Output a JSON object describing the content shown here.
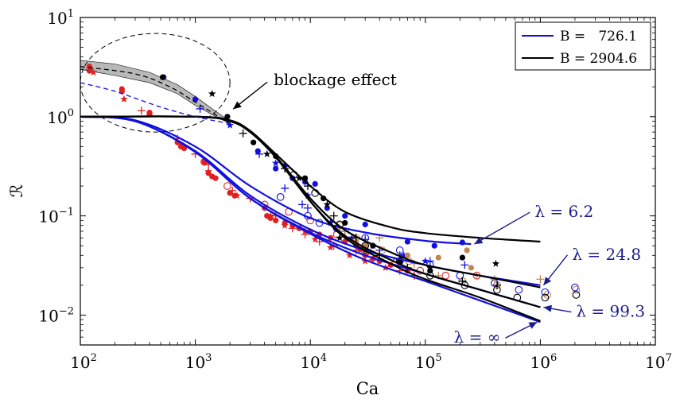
{
  "chart_data": {
    "type": "line",
    "xscale": "log",
    "yscale": "log",
    "xlim": [
      100,
      10000000
    ],
    "ylim": [
      0.005,
      10
    ],
    "xlabel": "Ca",
    "ylabel": "ℛ",
    "x_ticks": [
      {
        "base": "10",
        "exp": "2",
        "value": 100
      },
      {
        "base": "10",
        "exp": "3",
        "value": 1000
      },
      {
        "base": "10",
        "exp": "4",
        "value": 10000
      },
      {
        "base": "10",
        "exp": "5",
        "value": 100000
      },
      {
        "base": "10",
        "exp": "6",
        "value": 1000000
      },
      {
        "base": "10",
        "exp": "7",
        "value": 10000000
      }
    ],
    "y_ticks": [
      {
        "base": "10",
        "exp": "1",
        "value": 10
      },
      {
        "base": "10",
        "exp": "0",
        "value": 1
      },
      {
        "base": "10",
        "exp": "−1",
        "value": 0.1
      },
      {
        "base": "10",
        "exp": "−2",
        "value": 0.01
      }
    ],
    "legend": {
      "placement": "top-right",
      "entries": [
        {
          "label": "B =   726.1",
          "color": "#1010e0"
        },
        {
          "label": "B = 2904.6",
          "color": "#000000"
        }
      ]
    },
    "series": [
      {
        "group": "B = 726.1",
        "lambda": "6.2",
        "color": "#1010e0",
        "x": [
          100,
          300,
          1000,
          3000,
          10000,
          30000,
          100000,
          250000
        ],
        "y": [
          1.0,
          0.92,
          0.5,
          0.2,
          0.095,
          0.068,
          0.056,
          0.052
        ]
      },
      {
        "group": "B = 726.1",
        "lambda": "24.8",
        "color": "#1010e0",
        "x": [
          100,
          300,
          1000,
          3000,
          10000,
          30000,
          100000,
          300000,
          1000000
        ],
        "y": [
          1.0,
          0.9,
          0.45,
          0.16,
          0.073,
          0.045,
          0.032,
          0.025,
          0.02
        ]
      },
      {
        "group": "B = 726.1",
        "lambda": "99.3",
        "color": "#1010e0",
        "x": [
          100,
          300,
          1000,
          3000,
          10000,
          30000,
          100000,
          300000,
          1000000
        ],
        "y": [
          1.0,
          0.9,
          0.44,
          0.15,
          0.068,
          0.04,
          0.026,
          0.018,
          0.012
        ]
      },
      {
        "group": "B = 726.1",
        "lambda": "∞",
        "color": "#1010e0",
        "x": [
          100,
          300,
          1000,
          3000,
          10000,
          30000,
          100000,
          300000,
          1000000
        ],
        "y": [
          1.0,
          0.9,
          0.44,
          0.15,
          0.066,
          0.036,
          0.022,
          0.014,
          0.0085
        ]
      },
      {
        "group": "B = 2904.6",
        "lambda": "6.2",
        "color": "#000000",
        "x": [
          100,
          1000,
          2000,
          3000,
          5000,
          10000,
          20000,
          50000,
          100000,
          300000,
          1000000
        ],
        "y": [
          1.0,
          1.0,
          0.92,
          0.72,
          0.42,
          0.2,
          0.11,
          0.077,
          0.067,
          0.06,
          0.055
        ]
      },
      {
        "group": "B = 2904.6",
        "lambda": "24.8",
        "color": "#000000",
        "x": [
          100,
          1000,
          2000,
          3000,
          5000,
          10000,
          20000,
          50000,
          100000,
          300000,
          1000000
        ],
        "y": [
          1.0,
          1.0,
          0.9,
          0.7,
          0.4,
          0.15,
          0.072,
          0.043,
          0.032,
          0.025,
          0.019
        ]
      },
      {
        "group": "B = 2904.6",
        "lambda": "99.3",
        "color": "#000000",
        "x": [
          100,
          1000,
          2000,
          3000,
          5000,
          10000,
          20000,
          50000,
          100000,
          300000,
          1000000
        ],
        "y": [
          1.0,
          1.0,
          0.9,
          0.7,
          0.39,
          0.14,
          0.063,
          0.036,
          0.026,
          0.018,
          0.012
        ]
      },
      {
        "group": "B = 2904.6",
        "lambda": "∞",
        "color": "#000000",
        "x": [
          100,
          1000,
          2000,
          3000,
          5000,
          10000,
          20000,
          50000,
          100000,
          300000,
          1000000
        ],
        "y": [
          1.0,
          1.0,
          0.9,
          0.7,
          0.39,
          0.14,
          0.06,
          0.033,
          0.023,
          0.015,
          0.0087
        ]
      },
      {
        "group": "blockage",
        "style": "dashed",
        "color": "#000000",
        "x": [
          100,
          300,
          600,
          1000,
          2000
        ],
        "y": [
          3.2,
          2.7,
          2.0,
          1.4,
          0.85
        ]
      },
      {
        "group": "blockage",
        "style": "dashed",
        "color": "#1010e0",
        "x": [
          100,
          200,
          500,
          1000,
          2000
        ],
        "y": [
          2.2,
          1.8,
          1.25,
          1.0,
          0.85
        ]
      }
    ],
    "blockage_band": {
      "x": [
        100,
        200,
        400,
        700,
        1000,
        1400,
        2000
      ],
      "y_upper": [
        3.7,
        3.4,
        2.8,
        2.1,
        1.6,
        1.2,
        0.9
      ],
      "y_lower": [
        3.0,
        2.6,
        2.2,
        1.7,
        1.3,
        1.05,
        0.85
      ]
    },
    "lambda_labels": [
      {
        "text": "λ = 6.2",
        "x": 250000,
        "y": 0.052
      },
      {
        "text": "λ = 24.8",
        "x": 1000000,
        "y": 0.02
      },
      {
        "text": "λ = 99.3",
        "x": 1000000,
        "y": 0.012
      },
      {
        "text": "λ = ∞",
        "x": 1000000,
        "y": 0.0085
      }
    ],
    "annotations": [
      {
        "text": "blockage effect",
        "ellipse_center": [
          316,
          2.0
        ],
        "ellipse_span_x": [
          100,
          2000
        ],
        "ellipse_span_y": [
          0.7,
          6.9
        ]
      }
    ],
    "scatter_groups": [
      {
        "marker": "dot",
        "color": "#e02020",
        "points": [
          [
            120,
            3.2
          ],
          [
            120,
            2.9
          ],
          [
            230,
            1.9
          ],
          [
            230,
            1.8
          ],
          [
            400,
            1.1
          ],
          [
            400,
            1.05
          ],
          [
            700,
            0.55
          ],
          [
            750,
            0.5
          ],
          [
            800,
            0.48
          ],
          [
            1200,
            0.35
          ],
          [
            1300,
            0.27
          ],
          [
            1400,
            0.25
          ],
          [
            1500,
            0.24
          ],
          [
            2000,
            0.17
          ],
          [
            2200,
            0.16
          ],
          [
            4000,
            0.12
          ],
          [
            4200,
            0.1
          ],
          [
            4500,
            0.095
          ],
          [
            5000,
            0.09
          ],
          [
            6000,
            0.085
          ],
          [
            7000,
            0.08
          ],
          [
            8000,
            0.075
          ],
          [
            10000,
            0.07
          ],
          [
            12000,
            0.065
          ],
          [
            15000,
            0.06
          ],
          [
            20000,
            0.055
          ],
          [
            25000,
            0.05
          ],
          [
            27000,
            0.046
          ],
          [
            30000,
            0.04
          ],
          [
            35000,
            0.037
          ],
          [
            40000,
            0.035
          ],
          [
            50000,
            0.032
          ],
          [
            70000,
            0.028
          ]
        ]
      },
      {
        "marker": "plus",
        "color": "#e02020",
        "points": [
          [
            120,
            3.0
          ],
          [
            340,
            1.15
          ],
          [
            700,
            0.6
          ],
          [
            1000,
            0.42
          ],
          [
            1300,
            0.33
          ],
          [
            2100,
            0.18
          ],
          [
            3000,
            0.15
          ],
          [
            5000,
            0.1
          ],
          [
            7000,
            0.075
          ],
          [
            9000,
            0.065
          ],
          [
            12000,
            0.055
          ],
          [
            16000,
            0.05
          ],
          [
            25000,
            0.045
          ],
          [
            35000,
            0.036
          ],
          [
            60000,
            0.028
          ],
          [
            80000,
            0.025
          ]
        ]
      },
      {
        "marker": "star",
        "color": "#e02020",
        "points": [
          [
            130,
            2.8
          ],
          [
            240,
            1.5
          ],
          [
            800,
            0.5
          ],
          [
            1300,
            0.28
          ],
          [
            2300,
            0.16
          ],
          [
            4500,
            0.1
          ],
          [
            6000,
            0.08
          ],
          [
            9000,
            0.07
          ],
          [
            11000,
            0.058
          ],
          [
            15000,
            0.048
          ],
          [
            22000,
            0.04
          ],
          [
            30000,
            0.035
          ],
          [
            45000,
            0.03
          ]
        ]
      },
      {
        "marker": "ring",
        "color": "#e02020",
        "points": [
          [
            1200,
            0.35
          ],
          [
            1900,
            0.2
          ],
          [
            4000,
            0.13
          ],
          [
            6500,
            0.11
          ],
          [
            10000,
            0.09
          ],
          [
            17000,
            0.065
          ],
          [
            30000,
            0.042
          ],
          [
            55000,
            0.034
          ],
          [
            90000,
            0.028
          ],
          [
            150000,
            0.025
          ],
          [
            280000,
            0.025
          ]
        ]
      },
      {
        "marker": "dot",
        "color": "#1010e0",
        "points": [
          [
            530,
            2.5
          ],
          [
            1000,
            1.5
          ],
          [
            3500,
            0.45
          ],
          [
            5000,
            0.3
          ],
          [
            6000,
            0.32
          ],
          [
            7000,
            0.24
          ],
          [
            9000,
            0.22
          ],
          [
            11000,
            0.21
          ],
          [
            14000,
            0.12
          ],
          [
            20000,
            0.1
          ],
          [
            30000,
            0.082
          ],
          [
            70000,
            0.055
          ],
          [
            120000,
            0.05
          ],
          [
            210000,
            0.054
          ]
        ]
      },
      {
        "marker": "plus",
        "color": "#1010e0",
        "points": [
          [
            1100,
            1.2
          ],
          [
            3600,
            0.42
          ],
          [
            6000,
            0.19
          ],
          [
            8500,
            0.13
          ],
          [
            9500,
            0.12
          ],
          [
            15000,
            0.088
          ],
          [
            20000,
            0.07
          ],
          [
            30000,
            0.058
          ],
          [
            40000,
            0.045
          ],
          [
            60000,
            0.04
          ],
          [
            110000,
            0.035
          ],
          [
            220000,
            0.032
          ]
        ]
      },
      {
        "marker": "star",
        "color": "#1010e0",
        "points": [
          [
            2000,
            0.82
          ],
          [
            5000,
            0.34
          ],
          [
            9500,
            0.16
          ],
          [
            15000,
            0.085
          ],
          [
            23000,
            0.06
          ],
          [
            35000,
            0.05
          ],
          [
            65000,
            0.04
          ],
          [
            100000,
            0.035
          ]
        ]
      },
      {
        "marker": "ring",
        "color": "#1010e0",
        "points": [
          [
            5500,
            0.155
          ],
          [
            9500,
            0.1
          ],
          [
            12000,
            0.085
          ],
          [
            17000,
            0.075
          ],
          [
            30000,
            0.06
          ],
          [
            60000,
            0.045
          ],
          [
            110000,
            0.032
          ],
          [
            200000,
            0.025
          ],
          [
            400000,
            0.021
          ],
          [
            650000,
            0.018
          ],
          [
            1100000,
            0.017
          ],
          [
            2000000,
            0.019
          ]
        ]
      },
      {
        "marker": "dot",
        "color": "#c08850",
        "points": [
          [
            25000,
            0.055
          ],
          [
            30000,
            0.05
          ],
          [
            70000,
            0.04
          ],
          [
            130000,
            0.038
          ],
          [
            230000,
            0.045
          ],
          [
            250000,
            0.03
          ]
        ]
      },
      {
        "marker": "plus",
        "color": "#c08850",
        "points": [
          [
            20000,
            0.07
          ],
          [
            40000,
            0.06
          ],
          [
            80000,
            0.033
          ],
          [
            130000,
            0.025
          ],
          [
            280000,
            0.025
          ],
          [
            400000,
            0.023
          ],
          [
            1000000,
            0.023
          ]
        ]
      },
      {
        "marker": "ring",
        "color": "#c08850",
        "points": [
          [
            18000,
            0.08
          ],
          [
            25000,
            0.06
          ],
          [
            42000,
            0.045
          ],
          [
            72000,
            0.035
          ],
          [
            210000,
            0.022
          ],
          [
            420000,
            0.02
          ],
          [
            1150000,
            0.016
          ],
          [
            2050000,
            0.018
          ]
        ]
      },
      {
        "marker": "dot",
        "color": "#000000",
        "points": [
          [
            520,
            2.5
          ],
          [
            1900,
            1.0
          ],
          [
            3200,
            0.55
          ],
          [
            5000,
            0.4
          ],
          [
            9000,
            0.24
          ],
          [
            13000,
            0.15
          ],
          [
            20000,
            0.085
          ],
          [
            35000,
            0.05
          ],
          [
            60000,
            0.035
          ],
          [
            110000,
            0.028
          ],
          [
            210000,
            0.038
          ]
        ]
      },
      {
        "marker": "plus",
        "color": "#000000",
        "points": [
          [
            2600,
            0.68
          ],
          [
            6000,
            0.3
          ],
          [
            9500,
            0.2
          ],
          [
            16000,
            0.1
          ],
          [
            25000,
            0.06
          ],
          [
            40000,
            0.04
          ],
          [
            70000,
            0.03
          ],
          [
            210000,
            0.022
          ],
          [
            420000,
            0.02
          ]
        ]
      },
      {
        "marker": "star",
        "color": "#000000",
        "points": [
          [
            1400,
            1.7
          ],
          [
            4200,
            0.42
          ],
          [
            8000,
            0.24
          ],
          [
            14000,
            0.13
          ],
          [
            18000,
            0.06
          ],
          [
            30000,
            0.045
          ],
          [
            110000,
            0.03
          ],
          [
            410000,
            0.033
          ]
        ]
      },
      {
        "marker": "ring",
        "color": "#000000",
        "points": [
          [
            7200,
            0.26
          ],
          [
            11000,
            0.17
          ],
          [
            18000,
            0.082
          ],
          [
            30000,
            0.05
          ],
          [
            60000,
            0.035
          ],
          [
            110000,
            0.025
          ],
          [
            220000,
            0.02
          ],
          [
            420000,
            0.018
          ],
          [
            630000,
            0.015
          ],
          [
            1100000,
            0.015
          ],
          [
            2050000,
            0.016
          ]
        ]
      }
    ]
  }
}
